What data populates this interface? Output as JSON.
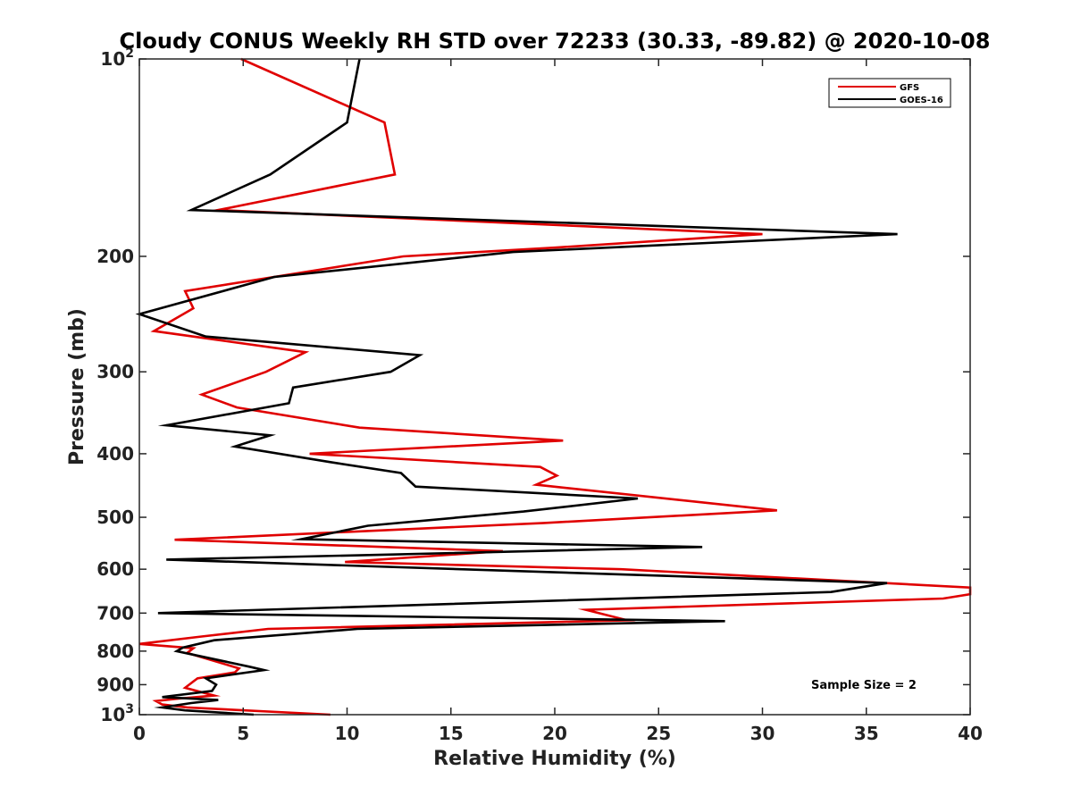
{
  "chart_data": {
    "type": "line",
    "title": "Cloudy CONUS Weekly RH STD over 72233 (30.33, -89.82) @ 2020-10-08",
    "xlabel": "Relative Humidity (%)",
    "ylabel": "Pressure (mb)",
    "xlim": [
      0,
      40
    ],
    "ylim": [
      100,
      1000
    ],
    "yscale": "log",
    "y_reversed": true,
    "x_ticks": [
      0,
      5,
      10,
      15,
      20,
      25,
      30,
      35,
      40
    ],
    "x_tick_labels": [
      "0",
      "5",
      "10",
      "15",
      "20",
      "25",
      "30",
      "35",
      "40"
    ],
    "y_ticks": [
      100,
      200,
      300,
      400,
      500,
      600,
      700,
      800,
      900,
      1000
    ],
    "y_tick_labels": [
      {
        "base": "10",
        "sup": "2"
      },
      {
        "base": "200",
        "sup": ""
      },
      {
        "base": "300",
        "sup": ""
      },
      {
        "base": "400",
        "sup": ""
      },
      {
        "base": "500",
        "sup": ""
      },
      {
        "base": "600",
        "sup": ""
      },
      {
        "base": "700",
        "sup": ""
      },
      {
        "base": "800",
        "sup": ""
      },
      {
        "base": "900",
        "sup": ""
      },
      {
        "base": "10",
        "sup": "3"
      }
    ],
    "legend_position": "top-right",
    "annotation": "Sample Size = 2",
    "series": [
      {
        "name": "GFS",
        "color": "#e00000",
        "points": [
          [
            4.9,
            100
          ],
          [
            11.8,
            125
          ],
          [
            12.3,
            150
          ],
          [
            3.8,
            170
          ],
          [
            30.0,
            185
          ],
          [
            20.0,
            194
          ],
          [
            12.7,
            200
          ],
          [
            2.2,
            226
          ],
          [
            2.6,
            240
          ],
          [
            0.7,
            260
          ],
          [
            8.0,
            280
          ],
          [
            6.1,
            300
          ],
          [
            3.0,
            325
          ],
          [
            4.7,
            340
          ],
          [
            10.6,
            365
          ],
          [
            20.4,
            382
          ],
          [
            8.2,
            400
          ],
          [
            19.3,
            419
          ],
          [
            20.1,
            432
          ],
          [
            19.1,
            446
          ],
          [
            30.7,
            488
          ],
          [
            19.5,
            510
          ],
          [
            1.7,
            541
          ],
          [
            17.5,
            563
          ],
          [
            9.9,
            585
          ],
          [
            23.2,
            600
          ],
          [
            40.0,
            640
          ],
          [
            40.0,
            655
          ],
          [
            38.7,
            665
          ],
          [
            21.5,
            692
          ],
          [
            23.5,
            718
          ],
          [
            6.2,
            740
          ],
          [
            3.0,
            760
          ],
          [
            0.0,
            780
          ],
          [
            2.6,
            792
          ],
          [
            2.3,
            805
          ],
          [
            4.8,
            850
          ],
          [
            4.6,
            862
          ],
          [
            2.8,
            880
          ],
          [
            2.5,
            895
          ],
          [
            2.2,
            910
          ],
          [
            3.6,
            935
          ],
          [
            1.9,
            945
          ],
          [
            0.8,
            953
          ],
          [
            1.1,
            965
          ],
          [
            2.3,
            975
          ],
          [
            9.2,
            1000
          ]
        ]
      },
      {
        "name": "GOES-16",
        "color": "#000000",
        "points": [
          [
            10.6,
            100
          ],
          [
            10.0,
            125
          ],
          [
            6.3,
            150
          ],
          [
            2.5,
            170
          ],
          [
            36.5,
            185
          ],
          [
            18.0,
            197
          ],
          [
            6.5,
            215
          ],
          [
            0.0,
            245
          ],
          [
            3.2,
            265
          ],
          [
            13.5,
            283
          ],
          [
            12.1,
            300
          ],
          [
            7.4,
            317
          ],
          [
            7.2,
            335
          ],
          [
            1.3,
            362
          ],
          [
            6.3,
            375
          ],
          [
            4.6,
            390
          ],
          [
            9.2,
            412
          ],
          [
            12.6,
            428
          ],
          [
            13.3,
            449
          ],
          [
            24.0,
            468
          ],
          [
            18.5,
            490
          ],
          [
            11.0,
            515
          ],
          [
            7.8,
            540
          ],
          [
            27.1,
            555
          ],
          [
            12.0,
            570
          ],
          [
            1.3,
            580
          ],
          [
            36.0,
            630
          ],
          [
            33.3,
            650
          ],
          [
            0.9,
            700
          ],
          [
            28.2,
            720
          ],
          [
            10.5,
            740
          ],
          [
            3.6,
            770
          ],
          [
            2.1,
            790
          ],
          [
            1.8,
            800
          ],
          [
            5.3,
            845
          ],
          [
            6.0,
            855
          ],
          [
            3.2,
            880
          ],
          [
            3.7,
            900
          ],
          [
            3.5,
            920
          ],
          [
            1.1,
            940
          ],
          [
            3.8,
            950
          ],
          [
            2.5,
            960
          ],
          [
            1.1,
            975
          ],
          [
            2.2,
            985
          ],
          [
            5.5,
            1000
          ]
        ]
      }
    ]
  }
}
